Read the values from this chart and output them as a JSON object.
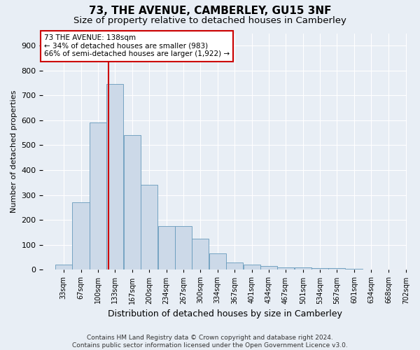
{
  "title": "73, THE AVENUE, CAMBERLEY, GU15 3NF",
  "subtitle": "Size of property relative to detached houses in Camberley",
  "xlabel": "Distribution of detached houses by size in Camberley",
  "ylabel": "Number of detached properties",
  "footer_line1": "Contains HM Land Registry data © Crown copyright and database right 2024.",
  "footer_line2": "Contains public sector information licensed under the Open Government Licence v3.0.",
  "bin_lefts": [
    33,
    67,
    100,
    133,
    167,
    200,
    234,
    267,
    300,
    334,
    367,
    401,
    434,
    467,
    501,
    534,
    567,
    601,
    634,
    668
  ],
  "bin_width": 34,
  "bar_heights": [
    20,
    270,
    590,
    745,
    540,
    340,
    175,
    175,
    125,
    65,
    30,
    20,
    15,
    10,
    10,
    5,
    5,
    3,
    2,
    2
  ],
  "bar_color": "#ccd9e8",
  "bar_edge_color": "#6699bb",
  "red_line_x": 138,
  "red_line_color": "#cc0000",
  "annotation_text_line1": "73 THE AVENUE: 138sqm",
  "annotation_text_line2": "← 34% of detached houses are smaller (983)",
  "annotation_text_line3": "66% of semi-detached houses are larger (1,922) →",
  "annotation_box_facecolor": "#ffffff",
  "annotation_box_edgecolor": "#cc0000",
  "ylim": [
    0,
    950
  ],
  "yticks": [
    0,
    100,
    200,
    300,
    400,
    500,
    600,
    700,
    800,
    900
  ],
  "xlim_left": 10,
  "xlim_right": 720,
  "background_color": "#e8eef5",
  "plot_bg_color": "#e8eef5",
  "grid_color": "#ffffff",
  "title_fontsize": 11,
  "subtitle_fontsize": 9.5,
  "ylabel_fontsize": 8,
  "xlabel_fontsize": 9,
  "tick_label_fontsize": 7,
  "ytick_fontsize": 8,
  "footer_fontsize": 6.5
}
